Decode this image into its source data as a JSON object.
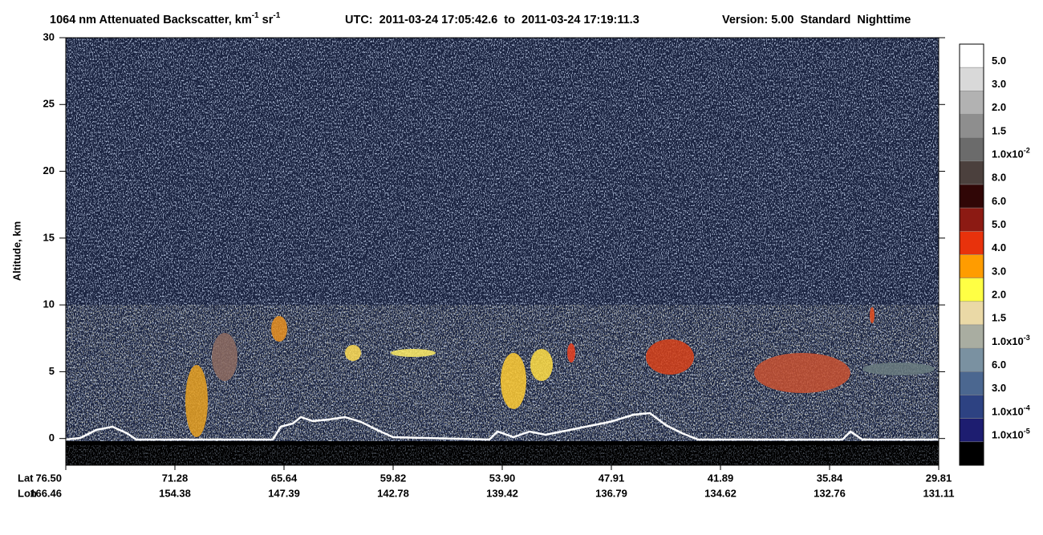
{
  "chart_data": {
    "type": "image",
    "title": [
      "1064 nm Attenuated Backscatter, km",
      "-1",
      " sr",
      "-1"
    ],
    "utc": "UTC:  2011-03-24 17:05:42.6  to  2011-03-24 17:19:11.3",
    "version": "Version: 5.00  Standard  Nighttime",
    "ylabel": "Altitude, km",
    "ylim": [
      -2,
      30
    ],
    "yticks": [
      0,
      5,
      10,
      15,
      20,
      25,
      30
    ],
    "x_rows": [
      {
        "name": "Lat",
        "labels": [
          "76.50",
          "71.28",
          "65.64",
          "59.82",
          "53.90",
          "47.91",
          "41.89",
          "35.84",
          "29.81"
        ]
      },
      {
        "name": "Lon",
        "labels": [
          "166.46",
          "154.38",
          "147.39",
          "142.78",
          "139.42",
          "136.79",
          "134.62",
          "132.76",
          "131.11"
        ]
      }
    ],
    "colorbar": {
      "colors": [
        "#ffffff",
        "#d9d9d9",
        "#b2b2b2",
        "#8e8e8e",
        "#6b6b6b",
        "#4b403d",
        "#300606",
        "#8c1a13",
        "#e8320c",
        "#ff9c00",
        "#ffff44",
        "#ead9a6",
        "#a9ada1",
        "#7a91a1",
        "#4b6790",
        "#2d4282",
        "#1d1d70",
        "#000000"
      ],
      "labels": [
        [
          "5.0"
        ],
        [
          "3.0"
        ],
        [
          "2.0"
        ],
        [
          "1.5"
        ],
        [
          "1.0x10",
          "-2"
        ],
        [
          "8.0"
        ],
        [
          "6.0"
        ],
        [
          "5.0"
        ],
        [
          "4.0"
        ],
        [
          "3.0"
        ],
        [
          "2.0"
        ],
        [
          "1.5"
        ],
        [
          "1.0x10",
          "-3"
        ],
        [
          "6.0"
        ],
        [
          "3.0"
        ],
        [
          "1.0x10",
          "-4"
        ],
        [
          "1.0x10",
          "-5"
        ]
      ]
    }
  }
}
